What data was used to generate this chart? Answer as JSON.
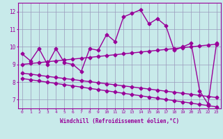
{
  "title": "",
  "xlabel": "Windchill (Refroidissement éolien,°C)",
  "x": [
    0,
    1,
    2,
    3,
    4,
    5,
    6,
    7,
    8,
    9,
    10,
    11,
    12,
    13,
    14,
    15,
    16,
    17,
    18,
    19,
    20,
    21,
    22,
    23
  ],
  "line1": [
    9.6,
    9.2,
    9.9,
    9.0,
    9.9,
    9.1,
    9.0,
    8.6,
    9.9,
    9.8,
    10.7,
    10.3,
    11.7,
    11.9,
    12.1,
    11.3,
    11.6,
    11.2,
    9.8,
    10.0,
    10.2,
    7.5,
    6.75,
    10.2
  ],
  "line2": [
    9.0,
    9.05,
    9.1,
    9.15,
    9.2,
    9.25,
    9.3,
    9.35,
    9.4,
    9.45,
    9.5,
    9.55,
    9.6,
    9.65,
    9.7,
    9.75,
    9.8,
    9.85,
    9.9,
    9.95,
    10.0,
    10.05,
    10.1,
    10.15
  ],
  "line3_upper": [
    8.5,
    8.45,
    8.38,
    8.32,
    8.26,
    8.2,
    8.14,
    8.08,
    8.02,
    7.96,
    7.9,
    7.84,
    7.78,
    7.72,
    7.66,
    7.6,
    7.54,
    7.48,
    7.42,
    7.36,
    7.3,
    7.24,
    7.18,
    7.12
  ],
  "line3_lower": [
    8.2,
    8.13,
    8.06,
    7.99,
    7.92,
    7.85,
    7.78,
    7.71,
    7.64,
    7.57,
    7.5,
    7.43,
    7.36,
    7.29,
    7.22,
    7.15,
    7.08,
    7.01,
    6.94,
    6.87,
    6.8,
    6.73,
    6.66,
    6.59
  ],
  "color": "#990099",
  "bg_color": "#c8eaea",
  "grid_color": "#9999bb",
  "ylim": [
    6.5,
    12.5
  ],
  "yticks": [
    7,
    8,
    9,
    10,
    11,
    12
  ],
  "xticks": [
    0,
    1,
    2,
    3,
    4,
    5,
    6,
    7,
    8,
    9,
    10,
    11,
    12,
    13,
    14,
    15,
    16,
    17,
    18,
    19,
    20,
    21,
    22,
    23
  ],
  "marker": "D",
  "markersize": 2.5,
  "linewidth": 1.0
}
